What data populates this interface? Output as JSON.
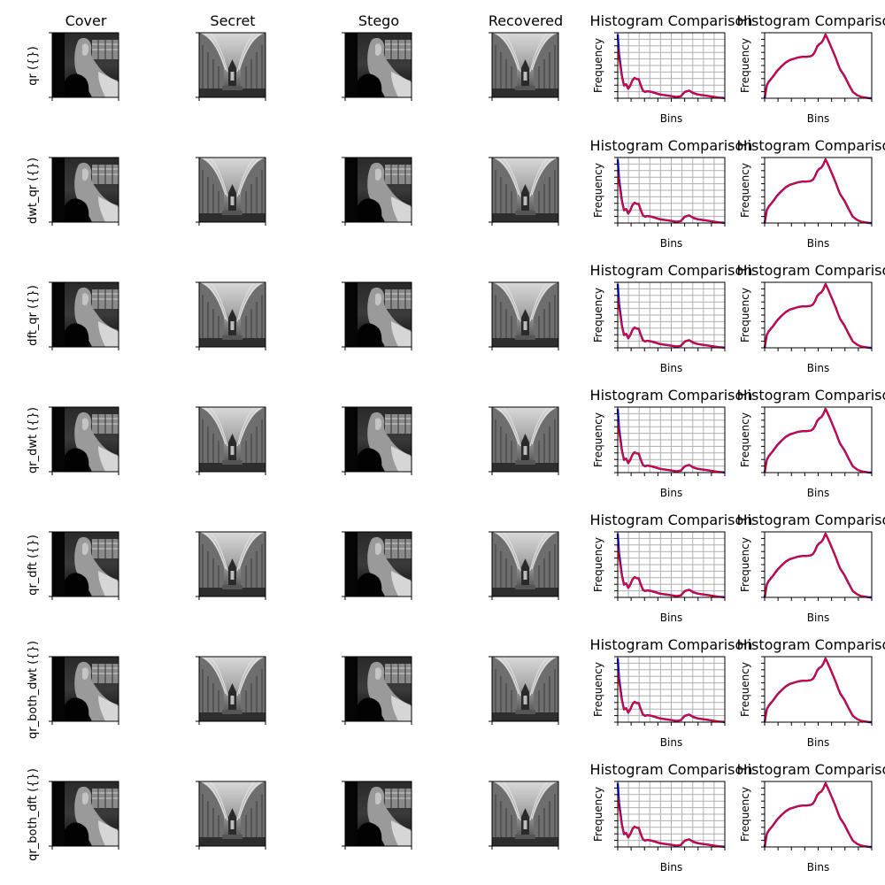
{
  "column_titles": [
    "Cover",
    "Secret",
    "Stego",
    "Recovered"
  ],
  "hist_title": "Histogram Comparison",
  "row_labels": [
    "qr ({})",
    "dwt_qr ({})",
    "dft_qr ({})",
    "qr_dwt ({})",
    "qr_dft ({})",
    "qr_both_dwt ({})",
    "qr_both_dft ({})"
  ],
  "colors": {
    "original": "#0000ff",
    "stego": "#ff0000",
    "grid": "#b0b0b0",
    "axis": "#000000",
    "background": "#ffffff"
  },
  "chart_data": [
    {
      "type": "line",
      "title": "Histogram Comparison",
      "xlabel": "Bins",
      "ylabel": "Frequency",
      "x_range": [
        0,
        255
      ],
      "grid": true,
      "series": [
        {
          "x": [
            0,
            3,
            6,
            10,
            15,
            20,
            25,
            30,
            35,
            40,
            45,
            50,
            55,
            60,
            65,
            70,
            80,
            90,
            100,
            110,
            120,
            130,
            140,
            150,
            160,
            170,
            180,
            190,
            200,
            210,
            220,
            230,
            240,
            250,
            255
          ],
          "y": [
            1.0,
            0.7,
            0.55,
            0.35,
            0.2,
            0.22,
            0.15,
            0.2,
            0.28,
            0.32,
            0.3,
            0.3,
            0.2,
            0.12,
            0.1,
            0.11,
            0.1,
            0.08,
            0.06,
            0.05,
            0.04,
            0.03,
            0.02,
            0.03,
            0.1,
            0.12,
            0.08,
            0.06,
            0.05,
            0.04,
            0.03,
            0.02,
            0.01,
            0.005,
            0.0
          ]
        },
        {
          "x": [
            0,
            3,
            6,
            10,
            15,
            20,
            25,
            30,
            35,
            40,
            45,
            50,
            55,
            60,
            65,
            70,
            80,
            90,
            100,
            110,
            120,
            130,
            140,
            150,
            160,
            170,
            180,
            190,
            200,
            210,
            220,
            230,
            240,
            250,
            255
          ],
          "y": [
            0.82,
            0.62,
            0.5,
            0.34,
            0.2,
            0.22,
            0.15,
            0.2,
            0.28,
            0.32,
            0.3,
            0.3,
            0.2,
            0.12,
            0.1,
            0.11,
            0.1,
            0.08,
            0.06,
            0.05,
            0.04,
            0.03,
            0.02,
            0.03,
            0.1,
            0.12,
            0.08,
            0.06,
            0.05,
            0.04,
            0.03,
            0.02,
            0.01,
            0.005,
            0.0
          ]
        }
      ]
    },
    {
      "type": "line",
      "title": "Histogram Comparison",
      "xlabel": "Bins",
      "ylabel": "Frequency",
      "x_range": [
        0,
        255
      ],
      "grid": false,
      "series": [
        {
          "x": [
            0,
            5,
            10,
            20,
            30,
            40,
            50,
            60,
            70,
            80,
            90,
            100,
            110,
            115,
            120,
            125,
            130,
            135,
            140,
            145,
            150,
            155,
            160,
            165,
            170,
            175,
            180,
            190,
            200,
            210,
            220,
            230,
            240,
            250,
            255
          ],
          "y": [
            0.0,
            0.2,
            0.26,
            0.34,
            0.43,
            0.5,
            0.56,
            0.6,
            0.62,
            0.64,
            0.65,
            0.65,
            0.66,
            0.68,
            0.73,
            0.81,
            0.85,
            0.87,
            0.92,
            1.0,
            0.93,
            0.86,
            0.78,
            0.7,
            0.62,
            0.53,
            0.45,
            0.35,
            0.22,
            0.1,
            0.05,
            0.02,
            0.01,
            0.0,
            0.0
          ]
        },
        {
          "x": [
            0,
            5,
            10,
            20,
            30,
            40,
            50,
            60,
            70,
            80,
            90,
            100,
            110,
            115,
            120,
            125,
            130,
            135,
            140,
            145,
            150,
            155,
            160,
            165,
            170,
            175,
            180,
            190,
            200,
            210,
            220,
            230,
            240,
            250,
            255
          ],
          "y": [
            0.0,
            0.2,
            0.26,
            0.34,
            0.43,
            0.5,
            0.56,
            0.6,
            0.62,
            0.64,
            0.65,
            0.65,
            0.66,
            0.68,
            0.73,
            0.81,
            0.85,
            0.87,
            0.92,
            1.0,
            0.93,
            0.86,
            0.78,
            0.7,
            0.62,
            0.53,
            0.45,
            0.35,
            0.22,
            0.1,
            0.05,
            0.02,
            0.01,
            0.0,
            0.0
          ]
        }
      ]
    }
  ]
}
